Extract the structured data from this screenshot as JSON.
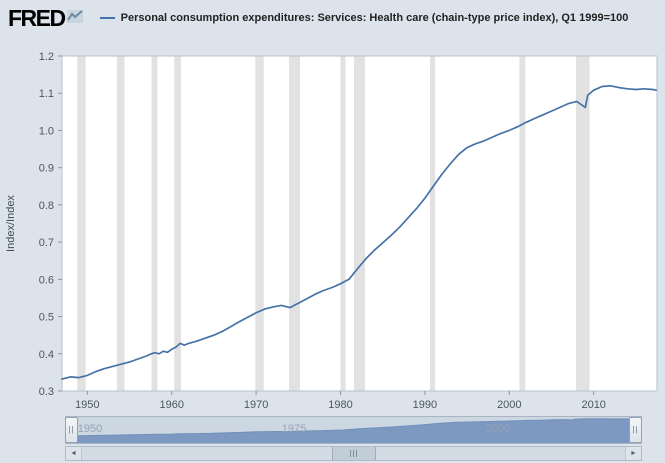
{
  "header": {
    "logo": "FRED",
    "series_label": "Personal consumption expenditures: Services: Health care (chain-type price index), Q1 1999=100"
  },
  "chart_data": {
    "type": "line",
    "title": "Personal consumption expenditures: Services: Health care (chain-type price index)",
    "units": "Q1 1999=100",
    "ylabel": "Index/Index",
    "ylim": [
      0.3,
      1.2
    ],
    "xlim": [
      1947,
      2017.5
    ],
    "yticks": [
      0.3,
      0.4,
      0.5,
      0.6,
      0.7,
      0.8,
      0.9,
      1.0,
      1.1,
      1.2
    ],
    "xticks": [
      1950,
      1960,
      1970,
      1980,
      1990,
      2000,
      2010
    ],
    "line_color": "#4572a7",
    "recession_color": "#e2e2e2",
    "plot_bg": "#ffffff",
    "grid": false,
    "legend_position": "top",
    "recessions": [
      [
        1948.8,
        1949.8
      ],
      [
        1953.5,
        1954.4
      ],
      [
        1957.6,
        1958.3
      ],
      [
        1960.3,
        1961.1
      ],
      [
        1969.9,
        1970.9
      ],
      [
        1973.9,
        1975.2
      ],
      [
        1980.0,
        1980.6
      ],
      [
        1981.6,
        1982.9
      ],
      [
        1990.6,
        1991.2
      ],
      [
        2001.2,
        2001.9
      ],
      [
        2007.9,
        2009.5
      ]
    ],
    "x": [
      1947,
      1948,
      1949,
      1950,
      1951,
      1952,
      1953,
      1954,
      1955,
      1956,
      1957,
      1957.5,
      1958,
      1958.5,
      1959,
      1959.5,
      1960,
      1960.5,
      1961,
      1961.5,
      1962,
      1963,
      1964,
      1965,
      1966,
      1967,
      1968,
      1969,
      1970,
      1971,
      1972,
      1973,
      1974,
      1975,
      1976,
      1977,
      1978,
      1979,
      1980,
      1981,
      1982,
      1983,
      1984,
      1985,
      1986,
      1987,
      1988,
      1989,
      1990,
      1991,
      1992,
      1993,
      1994,
      1995,
      1996,
      1997,
      1998,
      1999,
      2000,
      2001,
      2002,
      2003,
      2004,
      2005,
      2006,
      2007,
      2008,
      2008.5,
      2009,
      2009.3,
      2010,
      2011,
      2012,
      2013,
      2014,
      2015,
      2016,
      2017,
      2017.4
    ],
    "y": [
      0.332,
      0.338,
      0.336,
      0.342,
      0.352,
      0.36,
      0.366,
      0.372,
      0.378,
      0.386,
      0.394,
      0.399,
      0.403,
      0.4,
      0.407,
      0.404,
      0.412,
      0.418,
      0.428,
      0.423,
      0.428,
      0.434,
      0.442,
      0.45,
      0.46,
      0.473,
      0.486,
      0.498,
      0.51,
      0.52,
      0.526,
      0.53,
      0.524,
      0.536,
      0.548,
      0.56,
      0.57,
      0.578,
      0.588,
      0.6,
      0.628,
      0.655,
      0.678,
      0.698,
      0.718,
      0.74,
      0.765,
      0.79,
      0.818,
      0.85,
      0.882,
      0.91,
      0.936,
      0.954,
      0.964,
      0.972,
      0.982,
      0.992,
      1.0,
      1.01,
      1.022,
      1.032,
      1.042,
      1.052,
      1.062,
      1.072,
      1.078,
      1.07,
      1.062,
      1.095,
      1.108,
      1.118,
      1.12,
      1.115,
      1.112,
      1.11,
      1.112,
      1.11,
      1.108
    ]
  },
  "slider": {
    "labels": [
      {
        "text": "1950",
        "year": 1950
      },
      {
        "text": "1975",
        "year": 1975
      },
      {
        "text": "2000",
        "year": 2000
      }
    ],
    "handle_glyph": "||",
    "area_color": "#7e99c1",
    "area_edge_color": "#6f8fba",
    "track_color": "#cdd7e2"
  },
  "scrollbar": {
    "left_arrow": "◄",
    "right_arrow": "►"
  }
}
